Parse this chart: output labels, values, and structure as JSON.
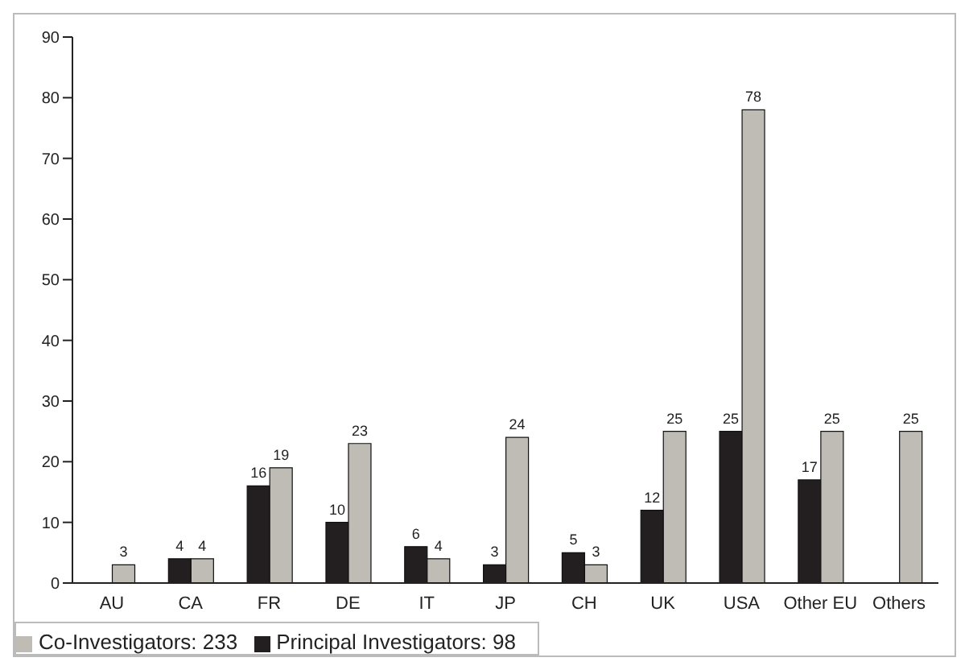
{
  "chart_data": {
    "type": "bar",
    "categories": [
      "AU",
      "CA",
      "FR",
      "DE",
      "IT",
      "JP",
      "CH",
      "UK",
      "USA",
      "Other EU",
      "Others"
    ],
    "series": [
      {
        "name": "Principal Investigators: 98",
        "color": "#231f20",
        "values": [
          null,
          4,
          16,
          10,
          6,
          3,
          5,
          12,
          25,
          17,
          null
        ]
      },
      {
        "name": "Co-Investigators: 233",
        "color": "#bfbcb6",
        "values": [
          3,
          4,
          19,
          23,
          4,
          24,
          3,
          25,
          78,
          25,
          25
        ]
      }
    ],
    "ylim": [
      0,
      90
    ],
    "yticks": [
      0,
      10,
      20,
      30,
      40,
      50,
      60,
      70,
      80,
      90
    ],
    "grid": false,
    "legend": "bottom left",
    "data_labels": true
  }
}
